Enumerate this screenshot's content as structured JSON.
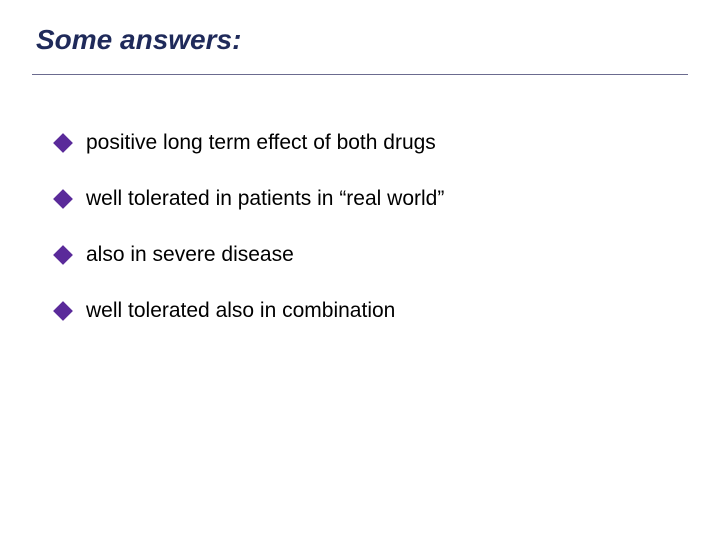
{
  "slide": {
    "title": "Some  answers:",
    "title_color": "#1f2a5a",
    "title_fontsize": 28,
    "title_style": "italic bold",
    "divider_color": "#6b6b8f",
    "background_color": "#ffffff",
    "bullet_color": "#5a2a9a",
    "bullet_shape": "diamond",
    "bullet_size": 14,
    "text_color": "#000000",
    "text_fontsize": 21,
    "font_family": "Verdana",
    "bullets": [
      {
        "text": "positive long term effect of both drugs"
      },
      {
        "text": "well tolerated in patients in “real world”"
      },
      {
        "text": "also in severe disease"
      },
      {
        "text": "well tolerated also in combination"
      }
    ]
  }
}
